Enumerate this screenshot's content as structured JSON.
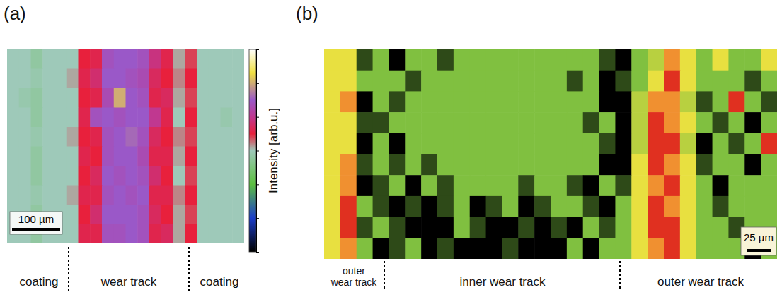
{
  "chart_data": [
    {
      "type": "heatmap",
      "panel": "(a)",
      "tick_labels": false,
      "colorbar": {
        "label": "Intensity [arb.u.]",
        "range": [
          0,
          6
        ],
        "ticks": [
          0,
          1,
          2,
          3,
          4,
          5,
          6
        ]
      },
      "scale_bar": "100 µm",
      "regions": [
        "coating",
        "wear track",
        "coating"
      ],
      "cells": [
        [
          3.0,
          3.0,
          2.8,
          3.0,
          3.0,
          3.0,
          3.5,
          3.6,
          4.4,
          4.5,
          4.5,
          4.4,
          3.9,
          3.6,
          3.1,
          3.4,
          3.0,
          3.0,
          3.0,
          3.0
        ],
        [
          3.0,
          3.0,
          2.9,
          3.0,
          3.0,
          3.1,
          3.6,
          3.8,
          4.5,
          4.5,
          4.4,
          4.3,
          3.7,
          3.5,
          3.2,
          3.5,
          3.0,
          3.0,
          3.0,
          3.0
        ],
        [
          3.0,
          2.9,
          2.8,
          3.0,
          3.0,
          3.0,
          3.5,
          3.6,
          4.3,
          5.0,
          4.5,
          4.4,
          3.6,
          3.7,
          3.1,
          3.4,
          3.0,
          3.0,
          3.0,
          3.0
        ],
        [
          3.0,
          3.0,
          2.8,
          3.0,
          3.0,
          3.0,
          3.6,
          4.4,
          4.5,
          4.4,
          4.5,
          4.5,
          4.0,
          3.6,
          3.0,
          3.5,
          3.0,
          3.0,
          2.9,
          3.0
        ],
        [
          3.0,
          3.0,
          2.9,
          3.0,
          3.0,
          3.1,
          3.5,
          3.6,
          4.4,
          4.5,
          4.6,
          4.4,
          3.7,
          3.5,
          3.2,
          3.4,
          3.0,
          3.0,
          3.0,
          3.0
        ],
        [
          3.0,
          3.0,
          2.8,
          3.0,
          3.0,
          3.0,
          3.6,
          3.5,
          4.4,
          4.5,
          4.5,
          4.3,
          3.6,
          3.6,
          3.1,
          3.5,
          3.0,
          3.0,
          3.0,
          3.0
        ],
        [
          3.0,
          3.0,
          2.8,
          3.0,
          3.0,
          3.0,
          3.5,
          3.7,
          4.5,
          4.4,
          4.5,
          4.4,
          3.8,
          3.5,
          3.0,
          3.4,
          3.0,
          3.0,
          3.0,
          3.0
        ],
        [
          3.0,
          3.0,
          2.9,
          3.0,
          3.0,
          3.1,
          3.6,
          3.6,
          4.4,
          4.5,
          4.4,
          4.5,
          3.6,
          3.6,
          3.2,
          3.5,
          3.0,
          3.0,
          3.0,
          3.0
        ],
        [
          3.0,
          3.0,
          2.8,
          3.0,
          3.0,
          3.0,
          3.5,
          3.8,
          4.5,
          4.5,
          4.5,
          4.4,
          3.7,
          3.5,
          3.1,
          3.4,
          3.0,
          3.0,
          3.0,
          3.0
        ],
        [
          3.0,
          3.0,
          2.8,
          3.0,
          3.0,
          3.0,
          3.6,
          3.6,
          4.4,
          4.4,
          4.5,
          4.4,
          3.6,
          3.7,
          3.1,
          3.5,
          3.0,
          3.0,
          3.0,
          3.0
        ]
      ]
    },
    {
      "type": "heatmap",
      "panel": "(b)",
      "tick_labels": false,
      "color_range": [
        0,
        6
      ],
      "scale_bar": "25 µm",
      "regions": [
        "outer wear track",
        "inner wear track",
        "outer wear track"
      ],
      "cells": [
        [
          4,
          4,
          1,
          2,
          0,
          2,
          2,
          1,
          2,
          2,
          2,
          2,
          2,
          2,
          2,
          2,
          2,
          1,
          0,
          2,
          3,
          5,
          4,
          2,
          4,
          2,
          2,
          4
        ],
        [
          4,
          4,
          2,
          2,
          2,
          1,
          2,
          2,
          2,
          2,
          2,
          2,
          2,
          2,
          2,
          1,
          2,
          0,
          1,
          2,
          4,
          6,
          4,
          2,
          2,
          2,
          1,
          2
        ],
        [
          4,
          5,
          0,
          2,
          1,
          2,
          2,
          2,
          2,
          2,
          2,
          2,
          2,
          2,
          2,
          2,
          2,
          0,
          0,
          3,
          5,
          5,
          3,
          1,
          2,
          6,
          2,
          1
        ],
        [
          4,
          4,
          1,
          1,
          2,
          2,
          2,
          2,
          2,
          2,
          2,
          2,
          2,
          2,
          2,
          2,
          1,
          2,
          0,
          3,
          6,
          5,
          4,
          2,
          1,
          2,
          0,
          2
        ],
        [
          4,
          4,
          0,
          2,
          0,
          2,
          2,
          2,
          2,
          2,
          2,
          2,
          2,
          2,
          2,
          2,
          2,
          1,
          0,
          3,
          6,
          6,
          3,
          0,
          2,
          1,
          2,
          6
        ],
        [
          4,
          5,
          1,
          2,
          1,
          2,
          1,
          2,
          2,
          2,
          2,
          2,
          2,
          2,
          2,
          2,
          2,
          0,
          0,
          4,
          6,
          5,
          4,
          1,
          2,
          2,
          0,
          2
        ],
        [
          4,
          5,
          0,
          1,
          2,
          0,
          2,
          1,
          2,
          2,
          2,
          2,
          1,
          2,
          2,
          1,
          0,
          2,
          1,
          4,
          5,
          6,
          4,
          2,
          0,
          2,
          2,
          2
        ],
        [
          4,
          6,
          2,
          1,
          0,
          1,
          0,
          1,
          2,
          0,
          1,
          2,
          0,
          1,
          2,
          2,
          1,
          0,
          2,
          4,
          6,
          5,
          4,
          2,
          1,
          2,
          2,
          2
        ],
        [
          4,
          6,
          1,
          2,
          1,
          0,
          0,
          0,
          2,
          1,
          0,
          0,
          1,
          0,
          1,
          0,
          2,
          1,
          2,
          4,
          6,
          6,
          4,
          2,
          2,
          1,
          2,
          2
        ],
        [
          4,
          5,
          2,
          0,
          1,
          2,
          0,
          1,
          0,
          0,
          0,
          1,
          0,
          0,
          0,
          2,
          0,
          2,
          2,
          4,
          5,
          6,
          4,
          2,
          2,
          2,
          0,
          2
        ]
      ]
    }
  ]
}
